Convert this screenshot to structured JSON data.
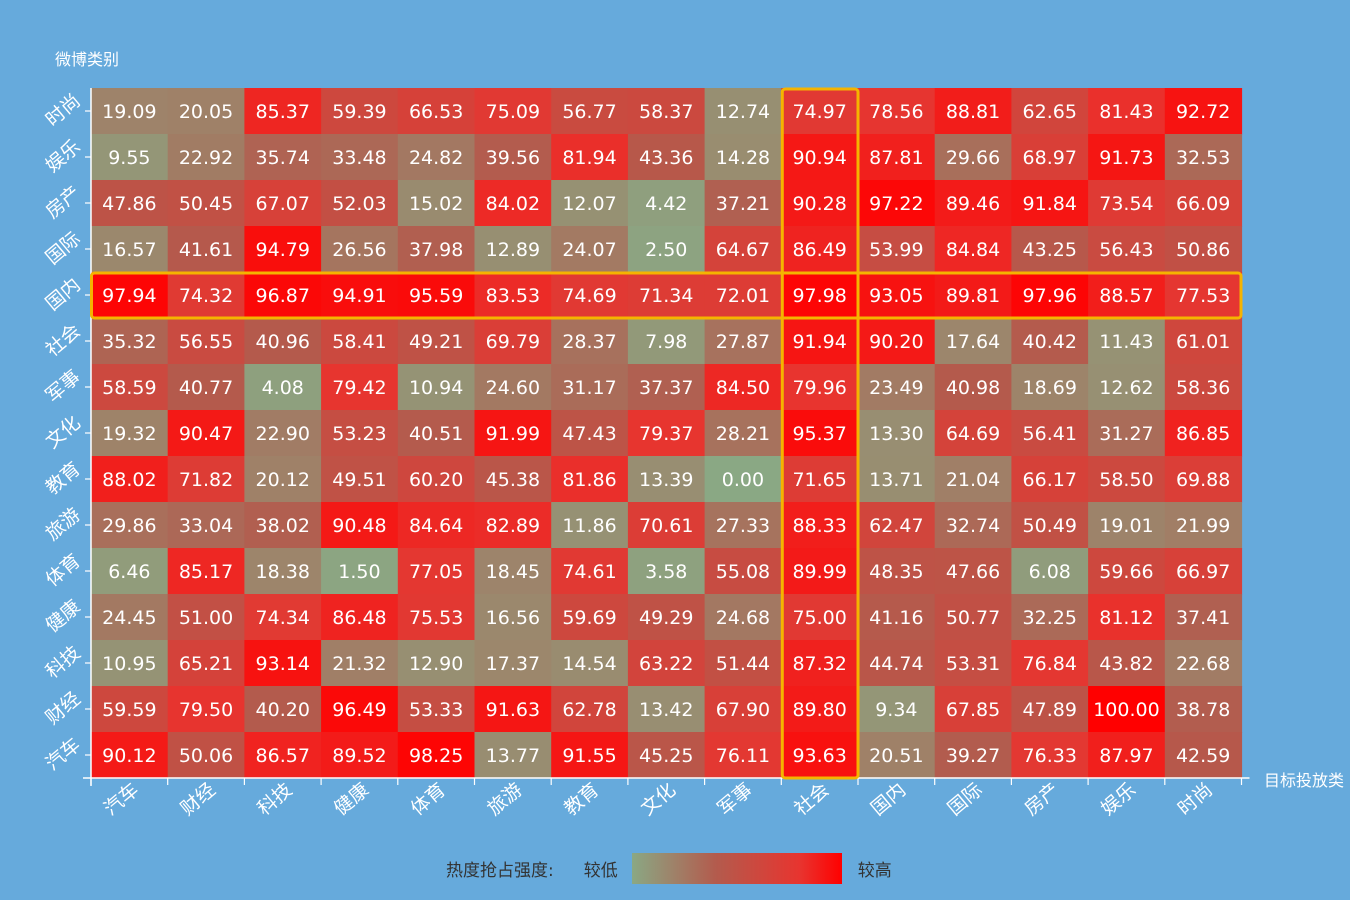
{
  "colors": {
    "background": "#66aadc",
    "low": "#8aa884",
    "mid": "#b35b4d",
    "high": "#ff0000",
    "highlight": "#f5b400"
  },
  "legend": {
    "label": "热度抢占强度:",
    "low": "较低",
    "high": "较高"
  },
  "chart_data": {
    "type": "heatmap",
    "ylabel": "微博类别",
    "xlabel": "目标投放类",
    "x_categories": [
      "汽车",
      "财经",
      "科技",
      "健康",
      "体育",
      "旅游",
      "教育",
      "文化",
      "军事",
      "社会",
      "国内",
      "国际",
      "房产",
      "娱乐",
      "时尚"
    ],
    "y_categories": [
      "时尚",
      "娱乐",
      "房产",
      "国际",
      "国内",
      "社会",
      "军事",
      "文化",
      "教育",
      "旅游",
      "体育",
      "健康",
      "科技",
      "财经",
      "汽车"
    ],
    "value_range": [
      0,
      100
    ],
    "highlight": {
      "row": "国内",
      "column": "社会"
    },
    "values": [
      [
        19.09,
        20.05,
        85.37,
        59.39,
        66.53,
        75.09,
        56.77,
        58.37,
        12.74,
        74.97,
        78.56,
        88.81,
        62.65,
        81.43,
        92.72
      ],
      [
        9.55,
        22.92,
        35.74,
        33.48,
        24.82,
        39.56,
        81.94,
        43.36,
        14.28,
        90.94,
        87.81,
        29.66,
        68.97,
        91.73,
        32.53
      ],
      [
        47.86,
        50.45,
        67.07,
        52.03,
        15.02,
        84.02,
        12.07,
        4.42,
        37.21,
        90.28,
        97.22,
        89.46,
        91.84,
        73.54,
        66.09
      ],
      [
        16.57,
        41.61,
        94.79,
        26.56,
        37.98,
        12.89,
        24.07,
        2.5,
        64.67,
        86.49,
        53.99,
        84.84,
        43.25,
        56.43,
        50.86
      ],
      [
        97.94,
        74.32,
        96.87,
        94.91,
        95.59,
        83.53,
        74.69,
        71.34,
        72.01,
        97.98,
        93.05,
        89.81,
        97.96,
        88.57,
        77.53
      ],
      [
        35.32,
        56.55,
        40.96,
        58.41,
        49.21,
        69.79,
        28.37,
        7.98,
        27.87,
        91.94,
        90.2,
        17.64,
        40.42,
        11.43,
        61.01
      ],
      [
        58.59,
        40.77,
        4.08,
        79.42,
        10.94,
        24.6,
        31.17,
        37.37,
        84.5,
        79.96,
        23.49,
        40.98,
        18.69,
        12.62,
        58.36
      ],
      [
        19.32,
        90.47,
        22.9,
        53.23,
        40.51,
        91.99,
        47.43,
        79.37,
        28.21,
        95.37,
        13.3,
        64.69,
        56.41,
        31.27,
        86.85
      ],
      [
        88.02,
        71.82,
        20.12,
        49.51,
        60.2,
        45.38,
        81.86,
        13.39,
        0.0,
        71.65,
        13.71,
        21.04,
        66.17,
        58.5,
        69.88
      ],
      [
        29.86,
        33.04,
        38.02,
        90.48,
        84.64,
        82.89,
        11.86,
        70.61,
        27.33,
        88.33,
        62.47,
        32.74,
        50.49,
        19.01,
        21.99
      ],
      [
        6.46,
        85.17,
        18.38,
        1.5,
        77.05,
        18.45,
        74.61,
        3.58,
        55.08,
        89.99,
        48.35,
        47.66,
        6.08,
        59.66,
        66.97
      ],
      [
        24.45,
        51.0,
        74.34,
        86.48,
        75.53,
        16.56,
        59.69,
        49.29,
        24.68,
        75.0,
        41.16,
        50.77,
        32.25,
        81.12,
        37.41
      ],
      [
        10.95,
        65.21,
        93.14,
        21.32,
        12.9,
        17.37,
        14.54,
        63.22,
        51.44,
        87.32,
        44.74,
        53.31,
        76.84,
        43.82,
        22.68
      ],
      [
        59.59,
        79.5,
        40.2,
        96.49,
        53.33,
        91.63,
        62.78,
        13.42,
        67.9,
        89.8,
        9.34,
        67.85,
        47.89,
        100.0,
        38.78
      ],
      [
        90.12,
        50.06,
        86.57,
        89.52,
        98.25,
        13.77,
        91.55,
        45.25,
        76.11,
        93.63,
        20.51,
        39.27,
        76.33,
        87.97,
        42.59
      ]
    ]
  }
}
